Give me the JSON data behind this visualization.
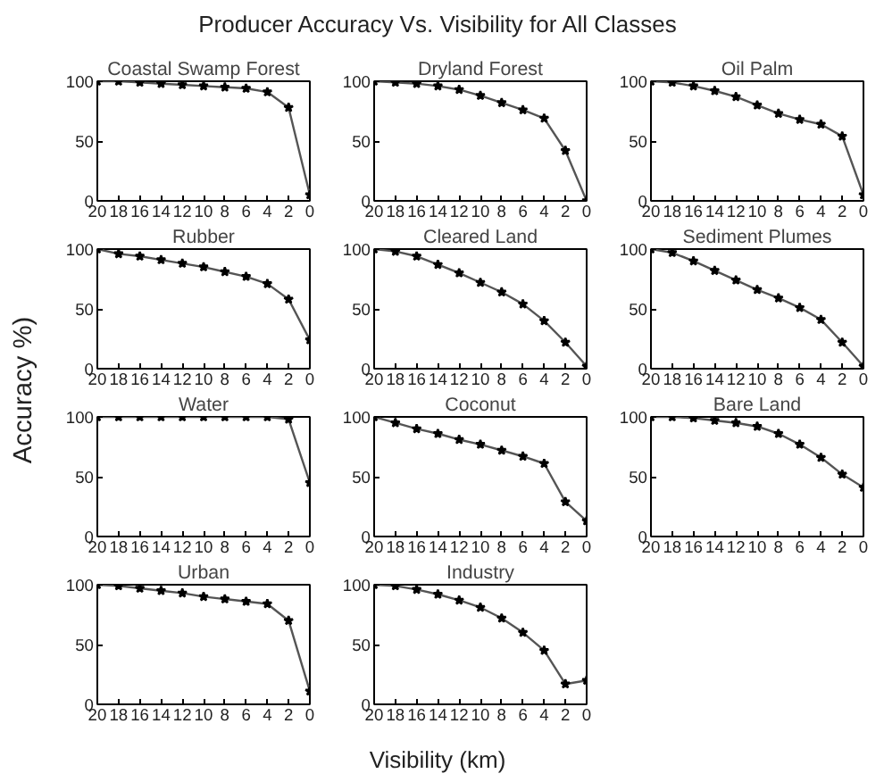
{
  "chart_data": [
    {
      "type": "line",
      "title": "Coastal Swamp Forest",
      "x": [
        20,
        18,
        16,
        14,
        12,
        10,
        8,
        6,
        4,
        2,
        0
      ],
      "values": [
        100,
        100,
        99,
        98,
        97,
        96,
        95,
        94,
        91,
        78,
        5
      ],
      "color": "#555555",
      "marker": "star",
      "xlim": [
        20,
        0
      ],
      "ylim": [
        0,
        100
      ],
      "xticks": [
        20,
        18,
        16,
        14,
        12,
        10,
        8,
        6,
        4,
        2,
        0
      ],
      "yticks": [
        0,
        50,
        100
      ]
    },
    {
      "type": "line",
      "title": "Dryland Forest",
      "x": [
        20,
        18,
        16,
        14,
        12,
        10,
        8,
        6,
        4,
        2,
        0
      ],
      "values": [
        100,
        99,
        98,
        96,
        93,
        88,
        82,
        76,
        69,
        42,
        0
      ],
      "color": "#555555",
      "marker": "star",
      "xlim": [
        20,
        0
      ],
      "ylim": [
        0,
        100
      ],
      "xticks": [
        20,
        18,
        16,
        14,
        12,
        10,
        8,
        6,
        4,
        2,
        0
      ],
      "yticks": [
        0,
        50,
        100
      ]
    },
    {
      "type": "line",
      "title": "Oil Palm",
      "x": [
        20,
        18,
        16,
        14,
        12,
        10,
        8,
        6,
        4,
        2,
        0
      ],
      "values": [
        100,
        99,
        96,
        92,
        87,
        80,
        73,
        68,
        64,
        54,
        5
      ],
      "color": "#555555",
      "marker": "star",
      "xlim": [
        20,
        0
      ],
      "ylim": [
        0,
        100
      ],
      "xticks": [
        20,
        18,
        16,
        14,
        12,
        10,
        8,
        6,
        4,
        2,
        0
      ],
      "yticks": [
        0,
        50,
        100
      ]
    },
    {
      "type": "line",
      "title": "Rubber",
      "x": [
        20,
        18,
        16,
        14,
        12,
        10,
        8,
        6,
        4,
        2,
        0
      ],
      "values": [
        100,
        96,
        94,
        91,
        88,
        85,
        81,
        77,
        71,
        58,
        24
      ],
      "color": "#555555",
      "marker": "star",
      "xlim": [
        20,
        0
      ],
      "ylim": [
        0,
        100
      ],
      "xticks": [
        20,
        18,
        16,
        14,
        12,
        10,
        8,
        6,
        4,
        2,
        0
      ],
      "yticks": [
        0,
        50,
        100
      ]
    },
    {
      "type": "line",
      "title": "Cleared Land",
      "x": [
        20,
        18,
        16,
        14,
        12,
        10,
        8,
        6,
        4,
        2,
        0
      ],
      "values": [
        100,
        98,
        94,
        87,
        80,
        72,
        64,
        54,
        40,
        22,
        2
      ],
      "color": "#555555",
      "marker": "star",
      "xlim": [
        20,
        0
      ],
      "ylim": [
        0,
        100
      ],
      "xticks": [
        20,
        18,
        16,
        14,
        12,
        10,
        8,
        6,
        4,
        2,
        0
      ],
      "yticks": [
        0,
        50,
        100
      ]
    },
    {
      "type": "line",
      "title": "Sediment Plumes",
      "x": [
        20,
        18,
        16,
        14,
        12,
        10,
        8,
        6,
        4,
        2,
        0
      ],
      "values": [
        100,
        97,
        90,
        82,
        74,
        66,
        59,
        51,
        41,
        22,
        2
      ],
      "color": "#555555",
      "marker": "star",
      "xlim": [
        20,
        0
      ],
      "ylim": [
        0,
        100
      ],
      "xticks": [
        20,
        18,
        16,
        14,
        12,
        10,
        8,
        6,
        4,
        2,
        0
      ],
      "yticks": [
        0,
        50,
        100
      ]
    },
    {
      "type": "line",
      "title": "Water",
      "x": [
        20,
        18,
        16,
        14,
        12,
        10,
        8,
        6,
        4,
        2,
        0
      ],
      "values": [
        100,
        100,
        100,
        100,
        100,
        100,
        100,
        100,
        100,
        98,
        45
      ],
      "color": "#555555",
      "marker": "star",
      "xlim": [
        20,
        0
      ],
      "ylim": [
        0,
        100
      ],
      "xticks": [
        20,
        18,
        16,
        14,
        12,
        10,
        8,
        6,
        4,
        2,
        0
      ],
      "yticks": [
        0,
        50,
        100
      ]
    },
    {
      "type": "line",
      "title": "Coconut",
      "x": [
        20,
        18,
        16,
        14,
        12,
        10,
        8,
        6,
        4,
        2,
        0
      ],
      "values": [
        100,
        95,
        90,
        86,
        81,
        77,
        72,
        67,
        61,
        29,
        13
      ],
      "color": "#555555",
      "marker": "star",
      "xlim": [
        20,
        0
      ],
      "ylim": [
        0,
        100
      ],
      "xticks": [
        20,
        18,
        16,
        14,
        12,
        10,
        8,
        6,
        4,
        2,
        0
      ],
      "yticks": [
        0,
        50,
        100
      ]
    },
    {
      "type": "line",
      "title": "Bare Land",
      "x": [
        20,
        18,
        16,
        14,
        12,
        10,
        8,
        6,
        4,
        2,
        0
      ],
      "values": [
        100,
        100,
        99,
        97,
        95,
        92,
        86,
        77,
        66,
        52,
        41
      ],
      "color": "#555555",
      "marker": "star",
      "xlim": [
        20,
        0
      ],
      "ylim": [
        0,
        100
      ],
      "xticks": [
        20,
        18,
        16,
        14,
        12,
        10,
        8,
        6,
        4,
        2,
        0
      ],
      "yticks": [
        0,
        50,
        100
      ]
    },
    {
      "type": "line",
      "title": "Urban",
      "x": [
        20,
        18,
        16,
        14,
        12,
        10,
        8,
        6,
        4,
        2,
        0
      ],
      "values": [
        100,
        99,
        97,
        95,
        93,
        90,
        88,
        86,
        84,
        70,
        11
      ],
      "color": "#555555",
      "marker": "star",
      "xlim": [
        20,
        0
      ],
      "ylim": [
        0,
        100
      ],
      "xticks": [
        20,
        18,
        16,
        14,
        12,
        10,
        8,
        6,
        4,
        2,
        0
      ],
      "yticks": [
        0,
        50,
        100
      ]
    },
    {
      "type": "line",
      "title": "Industry",
      "x": [
        20,
        18,
        16,
        14,
        12,
        10,
        8,
        6,
        4,
        2,
        0
      ],
      "values": [
        100,
        99,
        96,
        92,
        87,
        81,
        72,
        60,
        45,
        17,
        20
      ],
      "color": "#555555",
      "marker": "star",
      "xlim": [
        20,
        0
      ],
      "ylim": [
        0,
        100
      ],
      "xticks": [
        20,
        18,
        16,
        14,
        12,
        10,
        8,
        6,
        4,
        2,
        0
      ],
      "yticks": [
        0,
        50,
        100
      ]
    },
    {
      "type": "other",
      "title": "Producer Accuracy Vs. Visibility for All Classes",
      "xlabel": "Visibility (km)",
      "ylabel": "Accuracy %)"
    }
  ]
}
